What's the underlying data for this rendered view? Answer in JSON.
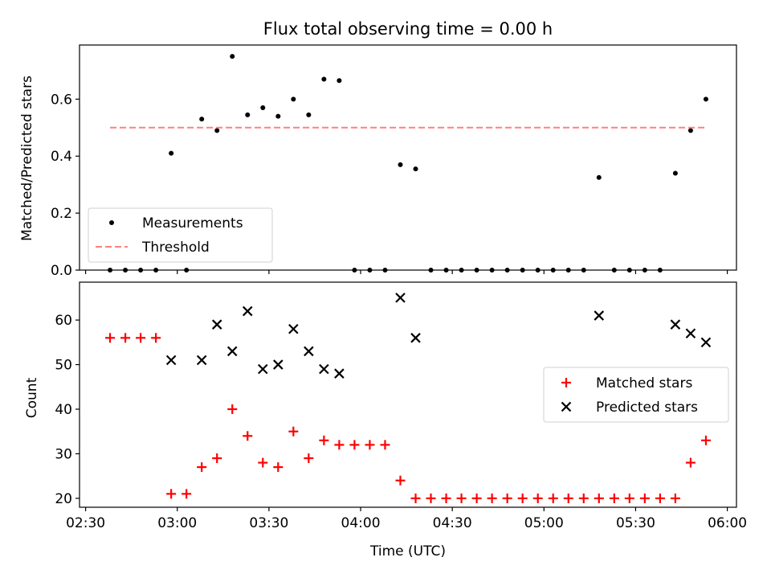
{
  "chart_data": [
    {
      "type": "scatter",
      "title": "Flux total observing time = 0.00 h",
      "xlabel": "",
      "ylabel": "Matched/Predicted stars",
      "xlim": [
        "02:28",
        "06:03"
      ],
      "ylim": [
        0,
        0.79
      ],
      "yticks": [
        "0.0",
        "0.2",
        "0.4",
        "0.6"
      ],
      "ytick_values": [
        0,
        0.2,
        0.4,
        0.6
      ],
      "legend": {
        "position": "lower-left",
        "entries": [
          "Measurements",
          "Threshold"
        ]
      },
      "series": [
        {
          "name": "Measurements",
          "color": "#000000",
          "marker": "dot",
          "x": [
            "02:38",
            "02:43",
            "02:48",
            "02:53",
            "02:58",
            "03:03",
            "03:08",
            "03:13",
            "03:18",
            "03:23",
            "03:28",
            "03:33",
            "03:38",
            "03:43",
            "03:48",
            "03:53",
            "03:58",
            "04:03",
            "04:08",
            "04:13",
            "04:18",
            "04:23",
            "04:28",
            "04:33",
            "04:38",
            "04:43",
            "04:48",
            "04:53",
            "04:58",
            "05:03",
            "05:08",
            "05:13",
            "05:18",
            "05:23",
            "05:28",
            "05:33",
            "05:38",
            "05:43",
            "05:48",
            "05:53"
          ],
          "y": [
            0,
            0,
            0,
            0,
            0.41,
            0,
            0.53,
            0.49,
            0.75,
            0.545,
            0.57,
            0.54,
            0.6,
            0.545,
            0.67,
            0.665,
            0,
            0,
            0,
            0.37,
            0.355,
            0,
            0,
            0,
            0,
            0,
            0,
            0,
            0,
            0,
            0,
            0,
            0.325,
            0,
            0,
            0,
            0,
            0.34,
            0.49,
            0.6
          ]
        },
        {
          "name": "Threshold",
          "color": "#ff8080",
          "style": "dashed",
          "x": [
            "02:38",
            "05:53"
          ],
          "y": [
            0.5,
            0.5
          ]
        }
      ]
    },
    {
      "type": "scatter",
      "title": "",
      "xlabel": "Time (UTC)",
      "ylabel": "Count",
      "xlim": [
        "02:28",
        "06:03"
      ],
      "ylim": [
        18,
        68.5
      ],
      "xticks": [
        "02:30",
        "03:00",
        "03:30",
        "04:00",
        "04:30",
        "05:00",
        "05:30",
        "06:00"
      ],
      "yticks": [
        "20",
        "30",
        "40",
        "50",
        "60"
      ],
      "ytick_values": [
        20,
        30,
        40,
        50,
        60
      ],
      "legend": {
        "position": "center-right",
        "entries": [
          "Matched stars",
          "Predicted stars"
        ]
      },
      "series": [
        {
          "name": "Matched stars",
          "color": "#ff0000",
          "marker": "plus",
          "x": [
            "02:38",
            "02:43",
            "02:48",
            "02:53",
            "02:58",
            "03:03",
            "03:08",
            "03:13",
            "03:18",
            "03:23",
            "03:28",
            "03:33",
            "03:38",
            "03:43",
            "03:48",
            "03:53",
            "03:58",
            "04:03",
            "04:08",
            "04:13",
            "04:18",
            "04:23",
            "04:28",
            "04:33",
            "04:38",
            "04:43",
            "04:48",
            "04:53",
            "04:58",
            "05:03",
            "05:08",
            "05:13",
            "05:18",
            "05:23",
            "05:28",
            "05:33",
            "05:38",
            "05:43",
            "05:48",
            "05:53"
          ],
          "y": [
            56,
            56,
            56,
            56,
            21,
            21,
            27,
            29,
            40,
            34,
            28,
            27,
            35,
            29,
            33,
            32,
            32,
            32,
            32,
            24,
            20,
            20,
            20,
            20,
            20,
            20,
            20,
            20,
            20,
            20,
            20,
            20,
            20,
            20,
            20,
            20,
            20,
            20,
            28,
            33
          ]
        },
        {
          "name": "Predicted stars",
          "color": "#000000",
          "marker": "x",
          "x": [
            "02:58",
            "03:08",
            "03:13",
            "03:18",
            "03:23",
            "03:28",
            "03:33",
            "03:38",
            "03:43",
            "03:48",
            "03:53",
            "04:13",
            "04:18",
            "05:18",
            "05:43",
            "05:48",
            "05:53"
          ],
          "y": [
            51,
            51,
            59,
            53,
            62,
            49,
            50,
            58,
            53,
            49,
            48,
            65,
            56,
            61,
            59,
            57,
            55
          ]
        }
      ]
    }
  ]
}
